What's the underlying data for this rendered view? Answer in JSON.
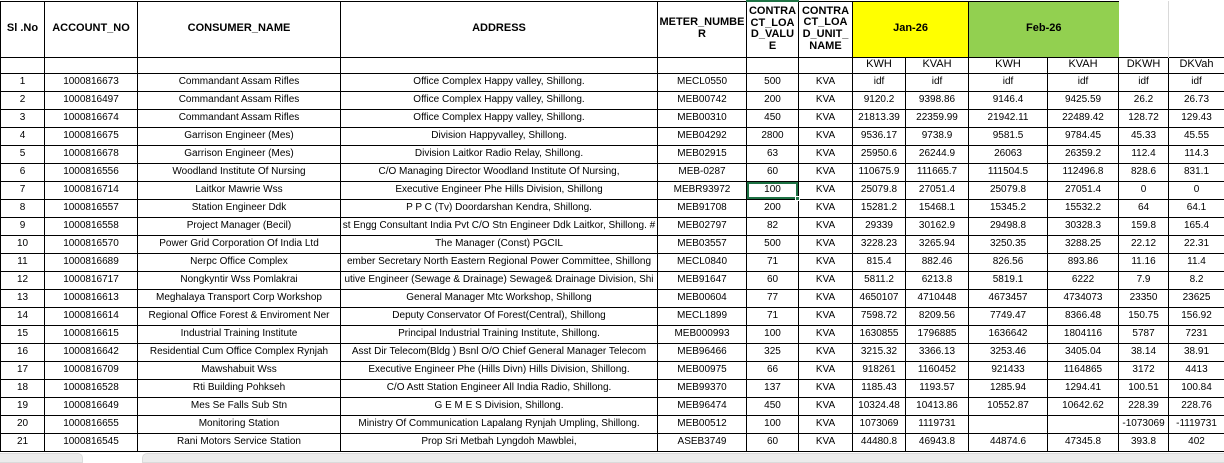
{
  "sheet": {
    "colors": {
      "jan_header_bg": "#FFFF00",
      "feb_header_bg": "#92D050",
      "selection_border": "#1E7244",
      "grid_border": "#000000"
    },
    "header_row1": {
      "si_no": "Sl .No",
      "account_no": "ACCOUNT_NO",
      "consumer_name": "CONSUMER_NAME",
      "address": "ADDRESS",
      "meter_number": "METER_NUMBER",
      "contract_load_value": "CONTRACT_LOAD_VALUE",
      "contract_load_unit_name": "CONTRACT_LOAD_UNIT_NAME",
      "jan": "Jan-26",
      "feb": "Feb-26"
    },
    "header_row2": {
      "jan_kwh": "KWH",
      "jan_kvah": "KVAH",
      "feb_kwh": "KWH",
      "feb_kvah": "KVAH",
      "dkwh": "DKWH",
      "dkvah": "DKVah"
    },
    "selected_cell": {
      "row": 7,
      "col_index": 5,
      "value": "100"
    },
    "rows": [
      [
        "1",
        "1000816673",
        "Commandant Assam Rifles",
        "Office Complex Happy valley, Shillong.",
        "MECL0550",
        "500",
        "KVA",
        "idf",
        "idf",
        "idf",
        "idf",
        "idf",
        "idf"
      ],
      [
        "2",
        "1000816497",
        "Commandant Assam Rifles",
        "Office Complex Happy valley, Shillong.",
        "MEB00742",
        "200",
        "KVA",
        "9120.2",
        "9398.86",
        "9146.4",
        "9425.59",
        "26.2",
        "26.73"
      ],
      [
        "3",
        "1000816674",
        "Commandant Assam Rifles",
        "Office Complex Happy valley, Shillong.",
        "MEB00310",
        "450",
        "KVA",
        "21813.39",
        "22359.99",
        "21942.11",
        "22489.42",
        "128.72",
        "129.43"
      ],
      [
        "4",
        "1000816675",
        "Garrison Engineer (Mes)",
        "Division Happyvalley, Shillong.",
        "MEB04292",
        "2800",
        "KVA",
        "9536.17",
        "9738.9",
        "9581.5",
        "9784.45",
        "45.33",
        "45.55"
      ],
      [
        "5",
        "1000816678",
        "Garrison Engineer (Mes)",
        "Division Laitkor Radio Relay, Shillong.",
        "MEB02915",
        "63",
        "KVA",
        "25950.6",
        "26244.9",
        "26063",
        "26359.2",
        "112.4",
        "114.3"
      ],
      [
        "6",
        "1000816556",
        "Woodland Institute Of Nursing",
        "C/O Managing Director Woodland Institute Of Nursing,",
        "MEB-0287",
        "60",
        "KVA",
        "110675.9",
        "111665.7",
        "111504.5",
        "112496.8",
        "828.6",
        "831.1"
      ],
      [
        "7",
        "1000816714",
        "Laitkor Mawrie Wss",
        "Executive Engineer Phe Hills Division, Shillong",
        "MEBR93972",
        "100",
        "KVA",
        "25079.8",
        "27051.4",
        "25079.8",
        "27051.4",
        "0",
        "0"
      ],
      [
        "8",
        "1000816557",
        "Station Engineer Ddk",
        "P P C (Tv) Doordarshan Kendra, Shillong.",
        "MEB91708",
        "200",
        "KVA",
        "15281.2",
        "15468.1",
        "15345.2",
        "15532.2",
        "64",
        "64.1"
      ],
      [
        "9",
        "1000816558",
        "Project Manager (Becil)",
        "st Engg Consultant India Pvt C/O Stn Engineer Ddk Laitkor, Shillong. #",
        "MEB02797",
        "82",
        "KVA",
        "29339",
        "30162.9",
        "29498.8",
        "30328.3",
        "159.8",
        "165.4"
      ],
      [
        "10",
        "1000816570",
        "Power Grid Corporation Of India Ltd",
        "The Manager (Const) PGCIL",
        "MEB03557",
        "500",
        "KVA",
        "3228.23",
        "3265.94",
        "3250.35",
        "3288.25",
        "22.12",
        "22.31"
      ],
      [
        "11",
        "1000816689",
        "Nerpc Office Complex",
        "ember Secretary North Eastern Regional Power Committee, Shillong",
        "MECL0840",
        "71",
        "KVA",
        "815.4",
        "882.46",
        "826.56",
        "893.86",
        "11.16",
        "11.4"
      ],
      [
        "12",
        "1000816717",
        "Nongkyntir Wss Pomlakrai",
        "utive Engineer (Sewage & Drainage) Sewage& Drainage Division, Shi",
        "MEB91647",
        "60",
        "KVA",
        "5811.2",
        "6213.8",
        "5819.1",
        "6222",
        "7.9",
        "8.2"
      ],
      [
        "13",
        "1000816613",
        "Meghalaya Transport Corp Workshop",
        "General Manager Mtc Workshop, Shillong",
        "MEB00604",
        "77",
        "KVA",
        "4650107",
        "4710448",
        "4673457",
        "4734073",
        "23350",
        "23625"
      ],
      [
        "14",
        "1000816614",
        "Regional Office Forest & Enviroment Ner",
        "Deputy Conservator Of Forest(Central), Shillong",
        "MECL1899",
        "71",
        "KVA",
        "7598.72",
        "8209.56",
        "7749.47",
        "8366.48",
        "150.75",
        "156.92"
      ],
      [
        "15",
        "1000816615",
        "Industrial Training Institute",
        "Principal Industrial Training Institute, Shillong.",
        "MEB000993",
        "100",
        "KVA",
        "1630855",
        "1796885",
        "1636642",
        "1804116",
        "5787",
        "7231"
      ],
      [
        "16",
        "1000816642",
        "Residential Cum Office Complex Rynjah",
        "Asst Dir Telecom(Bldg ) Bsnl O/O Chief General Manager Telecom",
        "MEB96466",
        "325",
        "KVA",
        "3215.32",
        "3366.13",
        "3253.46",
        "3405.04",
        "38.14",
        "38.91"
      ],
      [
        "17",
        "1000816709",
        "Mawshabuit  Wss",
        "Executive Engineer Phe (Hills Divn) Hills Division, Shillong.",
        "MEB00975",
        "66",
        "KVA",
        "918261",
        "1160452",
        "921433",
        "1164865",
        "3172",
        "4413"
      ],
      [
        "18",
        "1000816528",
        "Rti Building Pohkseh",
        "C/O Astt Station Engineer All India Radio, Shillong.",
        "MEB99370",
        "137",
        "KVA",
        "1185.43",
        "1193.57",
        "1285.94",
        "1294.41",
        "100.51",
        "100.84"
      ],
      [
        "19",
        "1000816649",
        "Mes Se Falls Sub Stn",
        "G E M E S Division, Shillong.",
        "MEB96474",
        "450",
        "KVA",
        "10324.48",
        "10413.86",
        "10552.87",
        "10642.62",
        "228.39",
        "228.76"
      ],
      [
        "20",
        "1000816655",
        "Monitoring  Station",
        "Ministry Of Communication Lapalang Rynjah Umpling, Shillong.",
        "MEB00512",
        "100",
        "KVA",
        "1073069",
        "1119731",
        "",
        "",
        "-1073069",
        "-1119731"
      ],
      [
        "21",
        "1000816545",
        "Rani Motors Service Station",
        "Prop Sri Metbah Lyngdoh Mawblei,",
        "ASEB3749",
        "60",
        "KVA",
        "44480.8",
        "46943.8",
        "44874.6",
        "47345.8",
        "393.8",
        "402"
      ]
    ]
  }
}
